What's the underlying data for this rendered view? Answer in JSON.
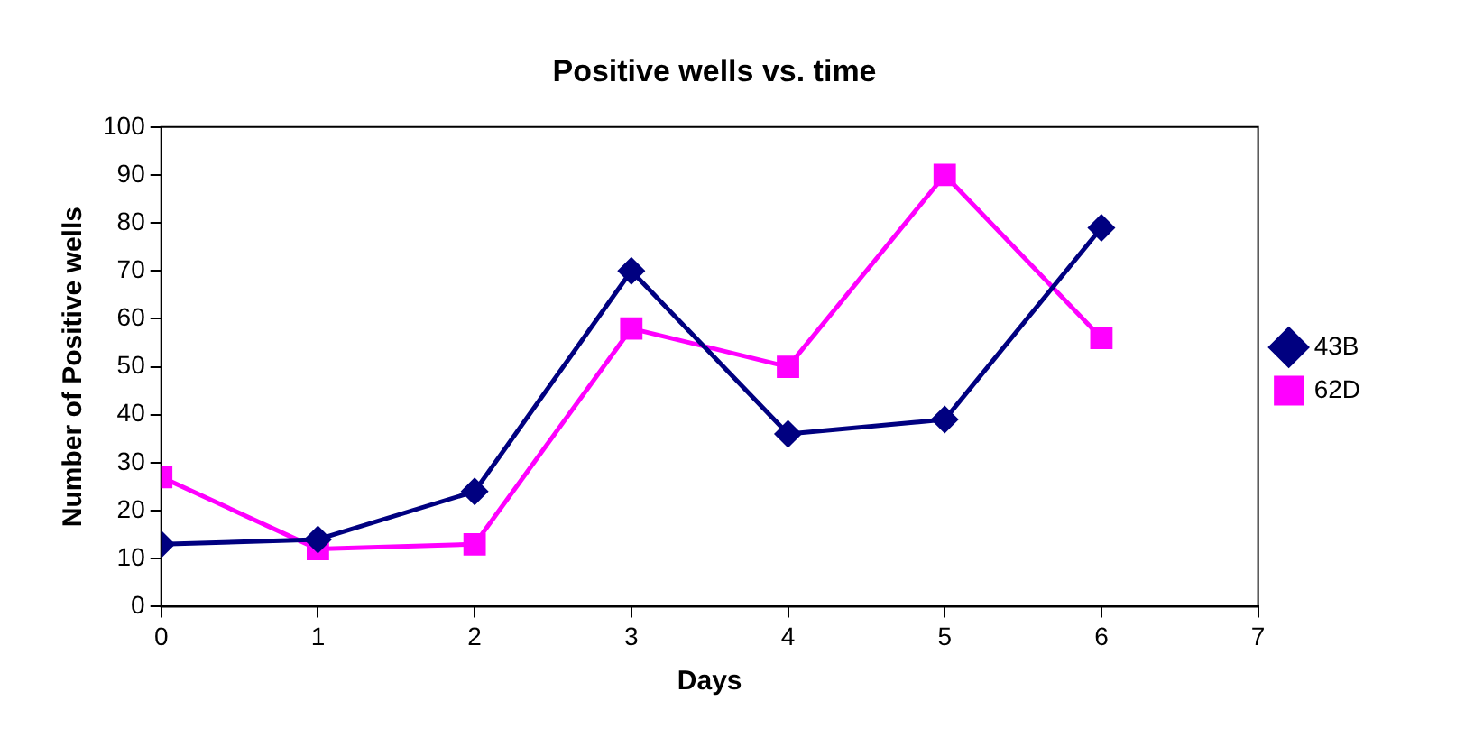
{
  "chart_data": {
    "type": "line",
    "title": "Positive wells vs. time",
    "xlabel": "Days",
    "ylabel": "Number of Positive wells",
    "x": [
      0,
      1,
      2,
      3,
      4,
      5,
      6
    ],
    "xlim": [
      0,
      7
    ],
    "xticks": [
      0,
      1,
      2,
      3,
      4,
      5,
      6,
      7
    ],
    "ylim": [
      0,
      100
    ],
    "yticks": [
      0,
      10,
      20,
      30,
      40,
      50,
      60,
      70,
      80,
      90,
      100
    ],
    "grid": false,
    "legend": "right",
    "line_style": "solid",
    "series": [
      {
        "name": "43B",
        "color": "#000080",
        "marker": "diamond",
        "values": [
          13,
          14,
          24,
          70,
          36,
          39,
          79
        ]
      },
      {
        "name": "62D",
        "color": "#ff00ff",
        "marker": "square",
        "values": [
          27,
          12,
          13,
          58,
          50,
          90,
          56
        ]
      }
    ]
  }
}
